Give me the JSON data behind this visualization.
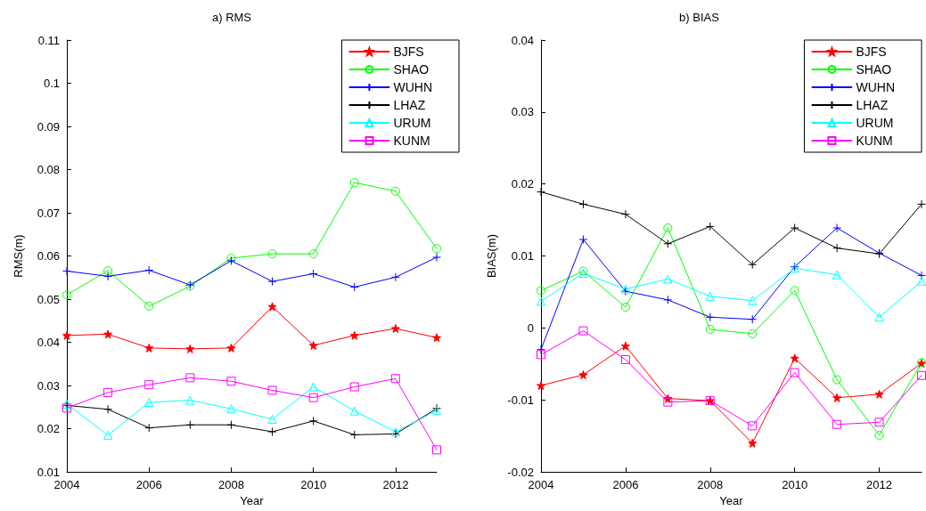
{
  "chart_data": [
    {
      "type": "line",
      "title": "a) RMS",
      "xlabel": "Year",
      "ylabel": "RMS(m)",
      "x": [
        2004,
        2005,
        2006,
        2007,
        2008,
        2009,
        2010,
        2011,
        2012,
        2013
      ],
      "xlim": [
        2004,
        2013
      ],
      "xticks": [
        2004,
        2006,
        2008,
        2010,
        2012
      ],
      "ylim": [
        0.01,
        0.11
      ],
      "yticks": [
        0.01,
        0.02,
        0.03,
        0.04,
        0.05,
        0.06,
        0.07,
        0.08,
        0.09,
        0.1,
        0.11
      ],
      "legend": "top right",
      "grid": false,
      "series": [
        {
          "name": "BJFS",
          "color": "#ff0000",
          "marker": "star",
          "values": [
            0.0416,
            0.0419,
            0.0387,
            0.0385,
            0.0387,
            0.0483,
            0.0393,
            0.0416,
            0.0432,
            0.0411
          ]
        },
        {
          "name": "SHAO",
          "color": "#00ff00",
          "marker": "circle",
          "values": [
            0.051,
            0.0566,
            0.0484,
            0.053,
            0.0595,
            0.0605,
            0.0605,
            0.077,
            0.075,
            0.0617
          ]
        },
        {
          "name": "WUHN",
          "color": "#0000ff",
          "marker": "cross",
          "values": [
            0.0565,
            0.0553,
            0.0567,
            0.0533,
            0.0589,
            0.0541,
            0.0559,
            0.0528,
            0.0551,
            0.0597
          ]
        },
        {
          "name": "LHAZ",
          "color": "#000000",
          "marker": "cross",
          "values": [
            0.0254,
            0.0245,
            0.0202,
            0.0209,
            0.0209,
            0.0193,
            0.0218,
            0.0186,
            0.0188,
            0.0247
          ]
        },
        {
          "name": "URUM",
          "color": "#00ffff",
          "marker": "triangle",
          "values": [
            0.0257,
            0.0185,
            0.0261,
            0.0266,
            0.0246,
            0.0222,
            0.0297,
            0.0241,
            0.0193,
            0.0242
          ]
        },
        {
          "name": "KUNM",
          "color": "#ff00ff",
          "marker": "square",
          "values": [
            0.0248,
            0.0284,
            0.0302,
            0.0318,
            0.031,
            0.0289,
            0.0272,
            0.0297,
            0.0316,
            0.0151
          ]
        }
      ]
    },
    {
      "type": "line",
      "title": "b) BIAS",
      "xlabel": "Year",
      "ylabel": "BIAS(m)",
      "x": [
        2004,
        2005,
        2006,
        2007,
        2008,
        2009,
        2010,
        2011,
        2012,
        2013
      ],
      "xlim": [
        2004,
        2013
      ],
      "xticks": [
        2004,
        2006,
        2008,
        2010,
        2012
      ],
      "ylim": [
        -0.02,
        0.04
      ],
      "yticks": [
        -0.02,
        -0.01,
        0,
        0.01,
        0.02,
        0.03,
        0.04
      ],
      "legend": "top right",
      "grid": false,
      "series": [
        {
          "name": "BJFS",
          "color": "#ff0000",
          "marker": "star",
          "values": [
            -0.008,
            -0.0065,
            -0.0025,
            -0.0098,
            -0.0101,
            -0.016,
            -0.0042,
            -0.0097,
            -0.0092,
            -0.0049
          ]
        },
        {
          "name": "SHAO",
          "color": "#00ff00",
          "marker": "circle",
          "values": [
            0.0052,
            0.0079,
            0.0029,
            0.0139,
            -0.0002,
            -0.0008,
            0.0052,
            -0.0072,
            -0.0149,
            -0.0048
          ]
        },
        {
          "name": "WUHN",
          "color": "#0000ff",
          "marker": "cross",
          "values": [
            -0.003,
            0.0123,
            0.0051,
            0.0039,
            0.0015,
            0.0012,
            0.0085,
            0.0139,
            0.0104,
            0.0073
          ]
        },
        {
          "name": "LHAZ",
          "color": "#000000",
          "marker": "cross",
          "values": [
            0.0189,
            0.0172,
            0.0158,
            0.0117,
            0.0141,
            0.0088,
            0.0139,
            0.0111,
            0.0103,
            0.0172
          ]
        },
        {
          "name": "URUM",
          "color": "#00ffff",
          "marker": "triangle",
          "values": [
            0.0037,
            0.0076,
            0.0054,
            0.0068,
            0.0044,
            0.0038,
            0.0083,
            0.0074,
            0.0015,
            0.0065
          ]
        },
        {
          "name": "KUNM",
          "color": "#ff00ff",
          "marker": "square",
          "values": [
            -0.0037,
            -0.0004,
            -0.0044,
            -0.0103,
            -0.0101,
            -0.0136,
            -0.0062,
            -0.0134,
            -0.0131,
            -0.0066
          ]
        }
      ]
    }
  ]
}
